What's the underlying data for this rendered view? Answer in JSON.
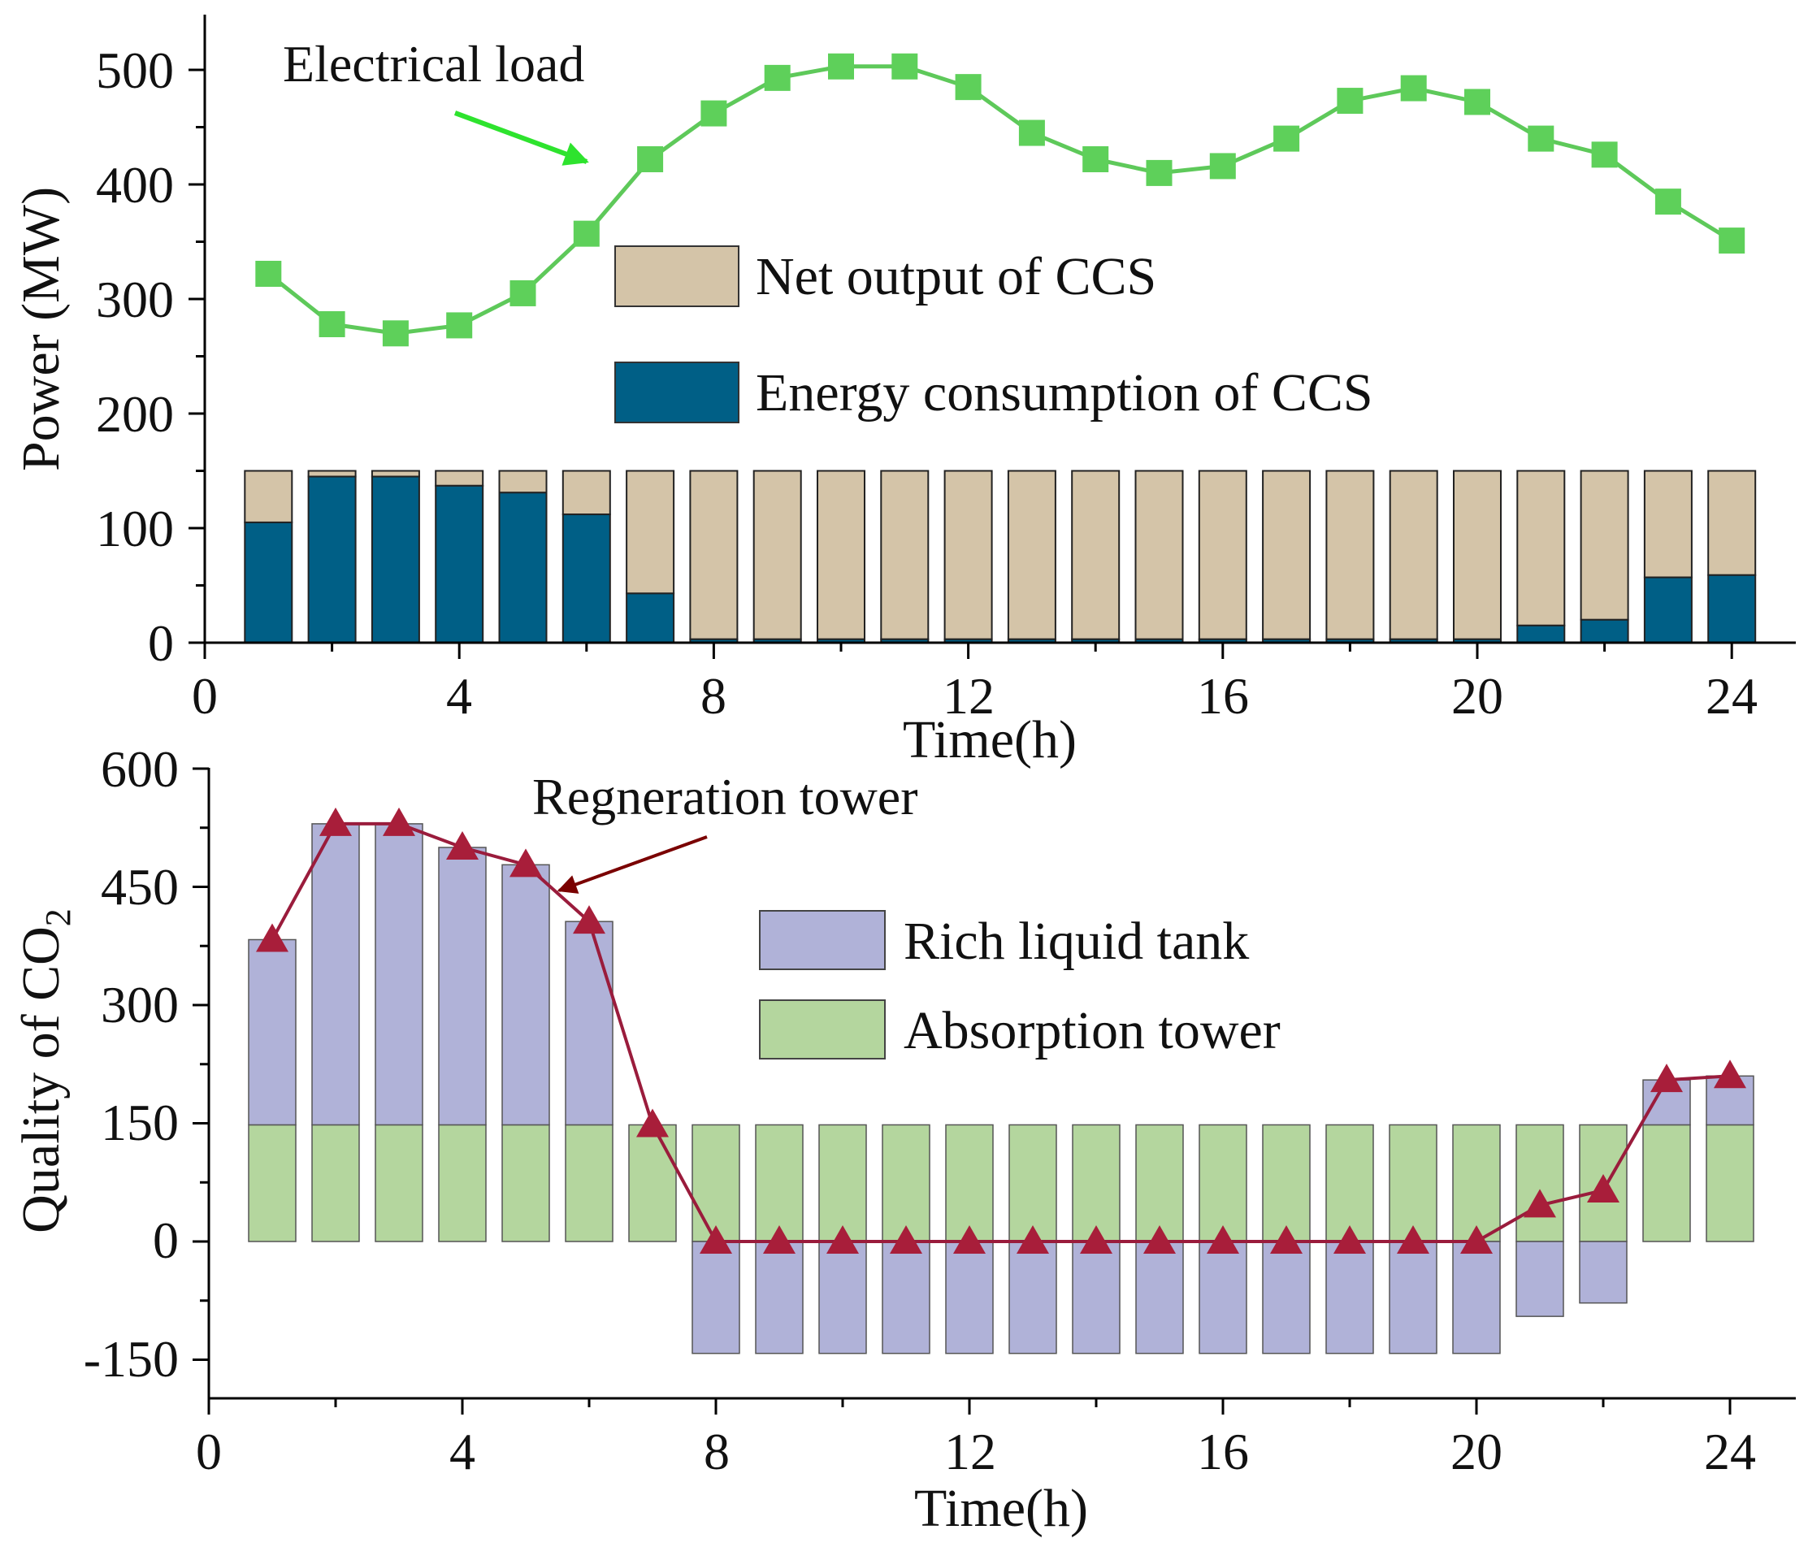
{
  "colors": {
    "load_line": "#5ec95a",
    "load_marker": "#5ed05a",
    "load_arrow": "#2ee32e",
    "net_output": "#d4c4a8",
    "energy_consumption": "#005f86",
    "rich_liquid": "#b0b2d8",
    "absorption": "#b4d69e",
    "regen_line": "#9a1c3c",
    "regen_marker": "#a81e3a",
    "regen_arrow": "#7a0000"
  },
  "chart_data": [
    {
      "type": "bar+line",
      "id": "top",
      "annotation": "Electrical load",
      "xlabel": "Time(h)",
      "ylabel": "Power (MW)",
      "xlim": [
        0,
        24.5
      ],
      "ylim": [
        0,
        550
      ],
      "xticks": [
        "0",
        "4",
        "8",
        "12",
        "16",
        "20",
        "24"
      ],
      "yticks": [
        "0",
        "100",
        "200",
        "300",
        "400",
        "500"
      ],
      "legend": [
        "Net output of CCS",
        "Energy consumption of CCS"
      ],
      "x": [
        1,
        2,
        3,
        4,
        5,
        6,
        7,
        8,
        9,
        10,
        11,
        12,
        13,
        14,
        15,
        16,
        17,
        18,
        19,
        20,
        21,
        22,
        23,
        24
      ],
      "series": [
        {
          "name": "Electrical load",
          "kind": "line",
          "values": [
            322,
            278,
            270,
            277,
            305,
            357,
            422,
            462,
            493,
            503,
            503,
            485,
            445,
            422,
            410,
            416,
            440,
            473,
            484,
            472,
            440,
            426,
            385,
            351
          ]
        },
        {
          "name": "Energy consumption of CCS",
          "kind": "bar",
          "values": [
            105,
            145,
            145,
            137,
            131,
            112,
            43,
            3,
            3,
            3,
            3,
            3,
            3,
            3,
            3,
            3,
            3,
            3,
            3,
            3,
            15,
            20,
            57,
            59
          ]
        },
        {
          "name": "Net output of CCS",
          "kind": "bar-stacked",
          "values": [
            45,
            5,
            5,
            13,
            19,
            38,
            107,
            147,
            147,
            147,
            147,
            147,
            147,
            147,
            147,
            147,
            147,
            147,
            147,
            147,
            135,
            130,
            93,
            91
          ]
        }
      ]
    },
    {
      "type": "bar+line",
      "id": "bottom",
      "annotation": "Regneration tower",
      "xlabel": "Time(h)",
      "ylabel": "Quality of CO",
      "ylabel_sub": "2",
      "xlim": [
        0,
        25
      ],
      "ylim": [
        -195,
        600
      ],
      "xticks": [
        "0",
        "4",
        "8",
        "12",
        "16",
        "20",
        "24"
      ],
      "yticks": [
        "-150",
        "0",
        "150",
        "300",
        "450",
        "600"
      ],
      "legend": [
        "Rich liquid tank",
        "Absorption tower"
      ],
      "x": [
        1,
        2,
        3,
        4,
        5,
        6,
        7,
        8,
        9,
        10,
        11,
        12,
        13,
        14,
        15,
        16,
        17,
        18,
        19,
        20,
        21,
        22,
        23,
        24
      ],
      "series": [
        {
          "name": "Absorption tower",
          "kind": "bar",
          "values": [
            148,
            148,
            148,
            148,
            148,
            148,
            148,
            148,
            148,
            148,
            148,
            148,
            148,
            148,
            148,
            148,
            148,
            148,
            148,
            148,
            148,
            148,
            148,
            148
          ]
        },
        {
          "name": "Rich liquid tank",
          "kind": "bar-stacked",
          "values": [
            235,
            382,
            382,
            352,
            330,
            258,
            0,
            -142,
            -142,
            -142,
            -142,
            -142,
            -142,
            -142,
            -142,
            -142,
            -142,
            -142,
            -142,
            -142,
            -95,
            -78,
            57,
            62
          ]
        },
        {
          "name": "Regneration tower",
          "kind": "line",
          "values": [
            383,
            530,
            530,
            500,
            478,
            406,
            148,
            0,
            0,
            0,
            0,
            0,
            0,
            0,
            0,
            0,
            0,
            0,
            0,
            0,
            46,
            65,
            205,
            210
          ]
        }
      ]
    }
  ]
}
